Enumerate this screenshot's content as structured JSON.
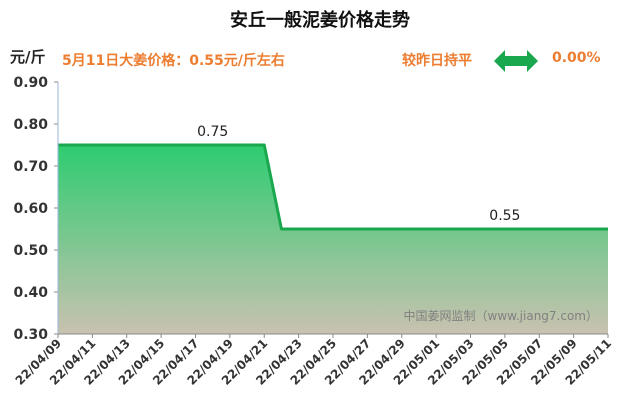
{
  "header": {
    "title": "安丘一般泥姜价格走势",
    "unit": "元/斤",
    "price_note": "5月11日大姜价格：0.55元/斤左右",
    "compare_text": "较昨日持平",
    "change_value": "0.00%",
    "arrow_icon": "double-arrow-icon",
    "arrow_color": "#1aa84f",
    "accent_color": "#ec7d31"
  },
  "watermark": "中国姜网监制（www.jiang7.com）",
  "chart_data": {
    "type": "area",
    "title": "安丘一般泥姜价格走势",
    "ylabel": "元/斤",
    "xlabel": "",
    "ylim": [
      0.3,
      0.9
    ],
    "y_ticks": [
      "0.30",
      "0.40",
      "0.50",
      "0.60",
      "0.70",
      "0.80",
      "0.90"
    ],
    "x_tick_labels": [
      "22/04/09",
      "22/04/11",
      "22/04/13",
      "22/04/15",
      "22/04/17",
      "22/04/19",
      "22/04/21",
      "22/04/23",
      "22/04/25",
      "22/04/27",
      "22/04/29",
      "22/05/01",
      "22/05/03",
      "22/05/05",
      "22/05/07",
      "22/05/09",
      "22/05/11"
    ],
    "x": [
      "22/04/09",
      "22/04/10",
      "22/04/11",
      "22/04/12",
      "22/04/13",
      "22/04/14",
      "22/04/15",
      "22/04/16",
      "22/04/17",
      "22/04/18",
      "22/04/19",
      "22/04/20",
      "22/04/21",
      "22/04/22",
      "22/04/23",
      "22/04/24",
      "22/04/25",
      "22/04/26",
      "22/04/27",
      "22/04/28",
      "22/04/29",
      "22/04/30",
      "22/05/01",
      "22/05/02",
      "22/05/03",
      "22/05/04",
      "22/05/05",
      "22/05/06",
      "22/05/07",
      "22/05/08",
      "22/05/09",
      "22/05/10",
      "22/05/11"
    ],
    "series": [
      {
        "values": [
          0.75,
          0.75,
          0.75,
          0.75,
          0.75,
          0.75,
          0.75,
          0.75,
          0.75,
          0.75,
          0.75,
          0.75,
          0.75,
          0.55,
          0.55,
          0.55,
          0.55,
          0.55,
          0.55,
          0.55,
          0.55,
          0.55,
          0.55,
          0.55,
          0.55,
          0.55,
          0.55,
          0.55,
          0.55,
          0.55,
          0.55,
          0.55,
          0.55
        ]
      }
    ],
    "data_labels": [
      {
        "x": "22/04/18",
        "text": "0.75"
      },
      {
        "x": "22/05/05",
        "text": "0.55"
      }
    ],
    "grid": false,
    "legend": "none",
    "line_color": "#1aa84f",
    "fill_top_color": "#2ecc71",
    "fill_bottom_color": "#c9c2b0"
  }
}
